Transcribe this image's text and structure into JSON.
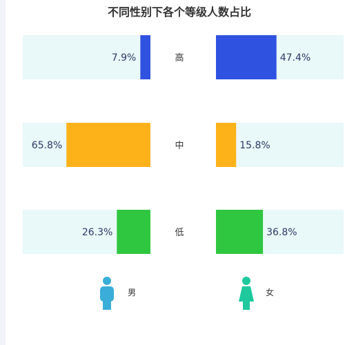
{
  "chart_data": {
    "type": "bar",
    "title": "不同性别下各个等级人数占比",
    "categories": [
      "高",
      "中",
      "低"
    ],
    "series": [
      {
        "name": "男",
        "values": [
          7.9,
          65.8,
          26.3
        ]
      },
      {
        "name": "女",
        "values": [
          47.4,
          15.8,
          36.8
        ]
      }
    ],
    "value_labels": {
      "男": [
        "7.9%",
        "65.8%",
        "26.3%"
      ],
      "女": [
        "47.4%",
        "15.8%",
        "36.8%"
      ]
    },
    "unit": "%",
    "xlim": [
      0,
      100
    ],
    "colors": {
      "高": "#2f52e0",
      "中": "#fdb21a",
      "低": "#2fc740",
      "track": "#e9f8f8",
      "male_icon": "#3aaed8",
      "female_icon": "#1ec99e"
    },
    "legend": [
      {
        "name": "男",
        "icon": "male-person-icon"
      },
      {
        "name": "女",
        "icon": "female-person-icon"
      }
    ]
  }
}
